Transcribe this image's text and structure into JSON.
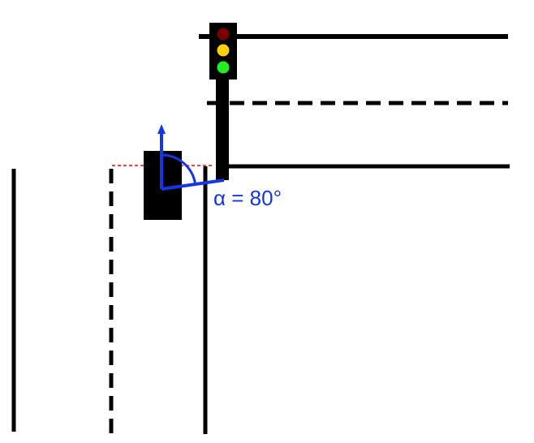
{
  "angle_label": "α = 80°",
  "colors": {
    "background": "#ffffff",
    "road_line": "#000000",
    "vehicle": "#000000",
    "angle_annotation": "#1436e6",
    "reference_line": "#ff0000",
    "light_red": "#7a0000",
    "light_yellow": "#ffd000",
    "light_green": "#22ee22",
    "signal_housing": "#000000"
  },
  "traffic_light": {
    "lamps": [
      "red",
      "yellow",
      "green"
    ]
  },
  "angle_degrees": 80
}
